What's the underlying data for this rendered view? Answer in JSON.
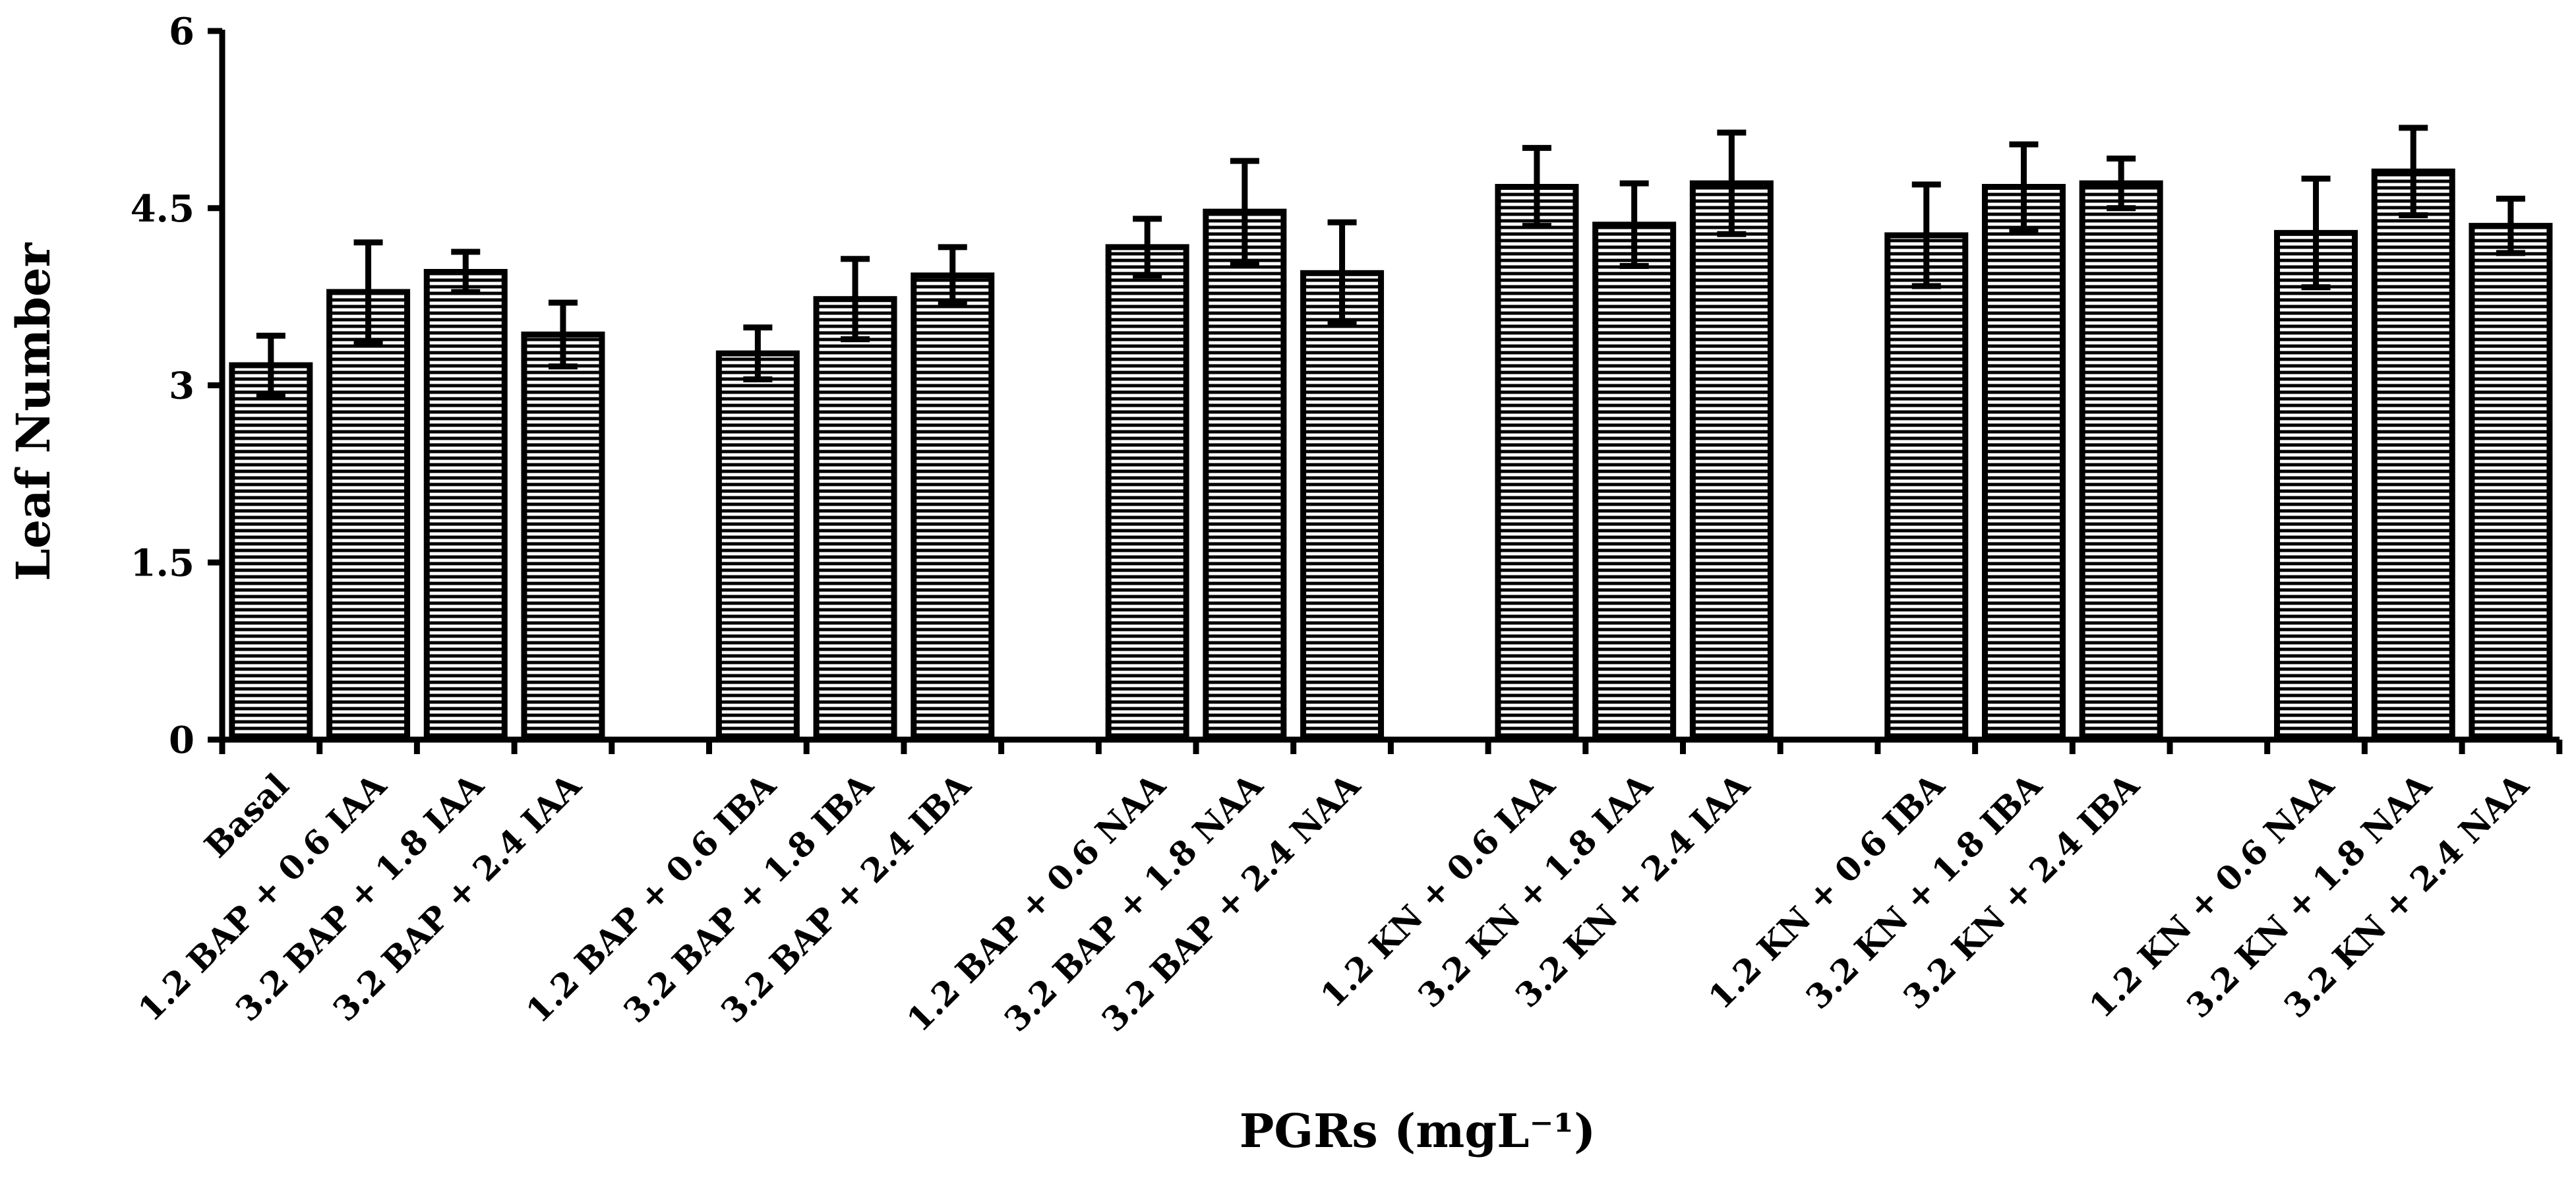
{
  "chart_data": {
    "type": "bar",
    "title": "",
    "xlabel": "PGRs (mgL⁻¹)",
    "ylabel": "Leaf Number",
    "ylim": [
      0,
      6
    ],
    "yticks": [
      "0",
      "1.5",
      "3",
      "4.5",
      "6"
    ],
    "ytick_values": [
      0,
      1.5,
      3,
      4.5,
      6
    ],
    "grid": false,
    "legend": "none",
    "groups": [
      [
        "Basal",
        "1.2 BAP + 0.6 IAA",
        "3.2 BAP + 1.8 IAA",
        "3.2 BAP + 2.4 IAA"
      ],
      [
        "1.2 BAP + 0.6 IBA",
        "3.2 BAP + 1.8 IBA",
        "3.2 BAP + 2.4 IBA"
      ],
      [
        "1.2 BAP + 0.6 NAA",
        "3.2 BAP + 1.8 NAA",
        "3.2 BAP + 2.4 NAA"
      ],
      [
        "1.2 KN + 0.6 IAA",
        "3.2 KN + 1.8 IAA",
        "3.2 KN + 2.4 IAA"
      ],
      [
        "1.2 KN + 0.6 IBA",
        "3.2 KN + 1.8 IBA",
        "3.2 KN + 2.4 IBA"
      ],
      [
        "1.2 KN + 0.6 NAA",
        "3.2 KN + 1.8 NAA",
        "3.2 KN + 2.4 NAA"
      ]
    ],
    "categories": [
      "Basal",
      "1.2 BAP + 0.6 IAA",
      "3.2 BAP + 1.8 IAA",
      "3.2 BAP + 2.4 IAA",
      "1.2 BAP + 0.6 IBA",
      "3.2 BAP + 1.8 IBA",
      "3.2 BAP + 2.4 IBA",
      "1.2 BAP + 0.6 NAA",
      "3.2 BAP + 1.8 NAA",
      "3.2 BAP + 2.4 NAA",
      "1.2 KN + 0.6 IAA",
      "3.2 KN + 1.8 IAA",
      "3.2 KN + 2.4 IAA",
      "1.2 KN + 0.6 IBA",
      "3.2 KN + 1.8 IBA",
      "3.2 KN + 2.4 IBA",
      "1.2 KN + 0.6 NAA",
      "3.2 KN + 1.8 NAA",
      "3.2 KN + 2.4 NAA"
    ],
    "values": [
      3.17,
      3.79,
      3.96,
      3.43,
      3.27,
      3.73,
      3.93,
      4.17,
      4.47,
      3.95,
      4.68,
      4.36,
      4.71,
      4.27,
      4.68,
      4.71,
      4.29,
      4.81,
      4.35
    ],
    "errors": [
      0.25,
      0.42,
      0.17,
      0.27,
      0.22,
      0.34,
      0.24,
      0.24,
      0.43,
      0.43,
      0.33,
      0.35,
      0.43,
      0.43,
      0.36,
      0.21,
      0.46,
      0.37,
      0.23
    ],
    "bar_fill": "#ffffff",
    "bar_hatch": "#000000",
    "bar_stroke": "#000000"
  }
}
